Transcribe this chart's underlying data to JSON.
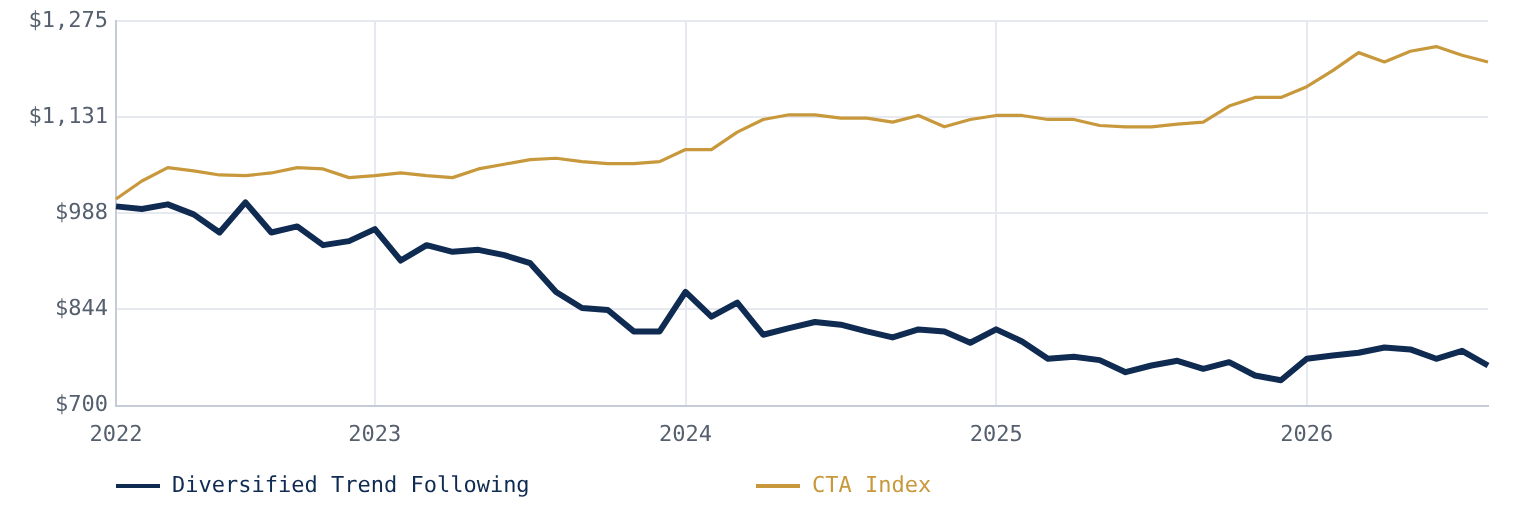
{
  "chart_data": {
    "type": "line",
    "categories": [
      "2022",
      null,
      null,
      null,
      null,
      null,
      null,
      null,
      null,
      null,
      "2023",
      null,
      null,
      null,
      null,
      null,
      null,
      null,
      null,
      null,
      null,
      null,
      "2024",
      null,
      null,
      null,
      null,
      null,
      null,
      null,
      null,
      null,
      null,
      null,
      "2025",
      null,
      null,
      null,
      null,
      null,
      null,
      null,
      null,
      null,
      null,
      null,
      "2026",
      null,
      null,
      null,
      null,
      null,
      null,
      null
    ],
    "series": [
      {
        "name": "Diversified Trend Following",
        "color": "#0f2b52",
        "values": [
          998,
          994,
          1001,
          986,
          959,
          1004,
          959,
          968,
          940,
          946,
          964,
          917,
          940,
          930,
          933,
          925,
          913,
          870,
          846,
          843,
          811,
          811,
          870,
          833,
          854,
          806,
          816,
          825,
          821,
          811,
          802,
          814,
          811,
          794,
          814,
          796,
          770,
          773,
          768,
          750,
          760,
          767,
          755,
          765,
          745,
          738,
          770,
          775,
          779,
          787,
          784,
          770,
          782,
          760
        ]
      },
      {
        "name": "CTA Index",
        "color": "#c8993c",
        "values": [
          1009,
          1036,
          1056,
          1051,
          1045,
          1044,
          1048,
          1056,
          1054,
          1041,
          1044,
          1048,
          1044,
          1041,
          1054,
          1061,
          1068,
          1070,
          1065,
          1062,
          1062,
          1065,
          1083,
          1083,
          1109,
          1128,
          1135,
          1135,
          1130,
          1130,
          1124,
          1134,
          1117,
          1128,
          1134,
          1134,
          1128,
          1128,
          1119,
          1117,
          1117,
          1121,
          1124,
          1148,
          1161,
          1161,
          1177,
          1201,
          1228,
          1214,
          1230,
          1237,
          1224,
          1214
        ]
      }
    ],
    "ylim": [
      700,
      1275
    ],
    "yticks": [
      {
        "value": 700,
        "label": "$700"
      },
      {
        "value": 844,
        "label": "$844"
      },
      {
        "value": 988,
        "label": "$988"
      },
      {
        "value": 1131,
        "label": "$1,131"
      },
      {
        "value": 1275,
        "label": "$1,275"
      }
    ],
    "grid": true,
    "legend": "bottom",
    "marker": "none"
  }
}
